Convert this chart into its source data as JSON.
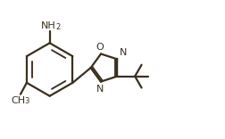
{
  "bg_color": "#ffffff",
  "line_color": "#3a3020",
  "line_width": 1.6,
  "font_size_label": 8.0,
  "font_size_sub": 6.0,
  "fig_w": 2.53,
  "fig_h": 1.56,
  "dpi": 100,
  "xlim": [
    0,
    2.53
  ],
  "ylim": [
    0,
    1.56
  ]
}
